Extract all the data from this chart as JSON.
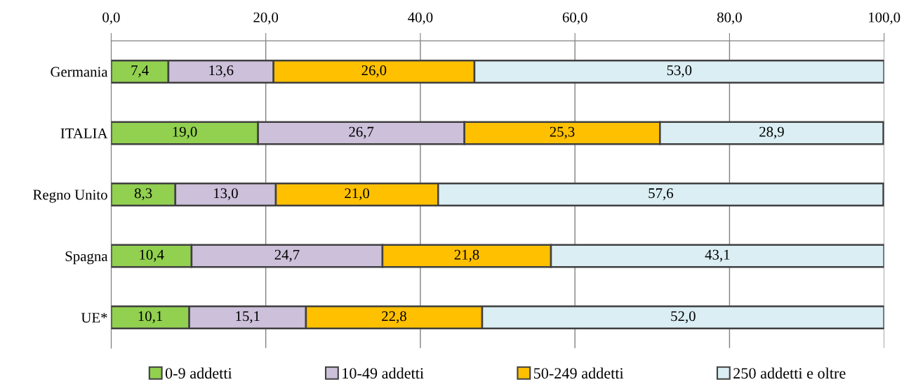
{
  "chart_data": {
    "type": "bar",
    "orientation": "horizontal",
    "stacked": true,
    "categories": [
      "Germania",
      "ITALIA",
      "Regno Unito",
      "Spagna",
      "UE*"
    ],
    "series": [
      {
        "name": "0-9 addetti",
        "color": "#92d050",
        "values": [
          7.4,
          19.0,
          8.3,
          10.4,
          10.1
        ],
        "value_labels": [
          "7,4",
          "19,0",
          "8,3",
          "10,4",
          "10,1"
        ]
      },
      {
        "name": "10-49 addetti",
        "color": "#ccc0da",
        "values": [
          13.6,
          26.7,
          13.0,
          24.7,
          15.1
        ],
        "value_labels": [
          "13,6",
          "26,7",
          "13,0",
          "24,7",
          "15,1"
        ]
      },
      {
        "name": "50-249 addetti",
        "color": "#ffc000",
        "values": [
          26.0,
          25.3,
          21.0,
          21.8,
          22.8
        ],
        "value_labels": [
          "26,0",
          "25,3",
          "21,0",
          "21,8",
          "22,8"
        ]
      },
      {
        "name": "250 addetti e oltre",
        "color": "#daeef3",
        "values": [
          53.0,
          28.9,
          57.6,
          43.1,
          52.0
        ],
        "value_labels": [
          "53,0",
          "28,9",
          "57,6",
          "43,1",
          "52,0"
        ]
      }
    ],
    "xlim": [
      0,
      100
    ],
    "xticks": [
      {
        "value": 0,
        "label": "0,0"
      },
      {
        "value": 20,
        "label": "20,0"
      },
      {
        "value": 40,
        "label": "40,0"
      },
      {
        "value": 60,
        "label": "60,0"
      },
      {
        "value": 80,
        "label": "80,0"
      },
      {
        "value": 100,
        "label": "100,0"
      }
    ],
    "grid": "x",
    "legend": "bottom"
  }
}
